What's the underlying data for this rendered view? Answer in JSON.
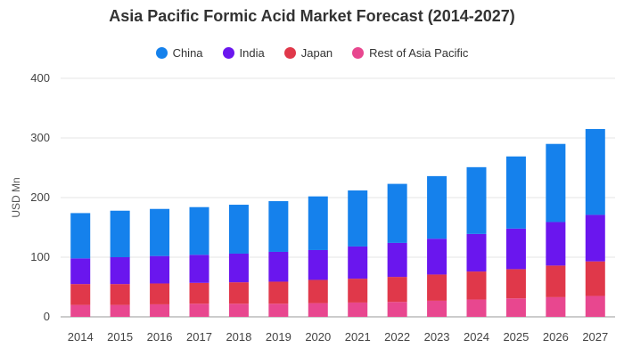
{
  "chart_data": {
    "type": "bar",
    "stacked": true,
    "title": "Asia Pacific Formic Acid Market Forecast (2014-2027)",
    "xlabel": "",
    "ylabel": "USD Mn",
    "ylim": [
      0,
      400
    ],
    "yticks": [
      0,
      100,
      200,
      300,
      400
    ],
    "grid": true,
    "legend_position": "top",
    "categories": [
      "2014",
      "2015",
      "2016",
      "2017",
      "2018",
      "2019",
      "2020",
      "2021",
      "2022",
      "2023",
      "2024",
      "2025",
      "2026",
      "2027"
    ],
    "series": [
      {
        "name": "Rest of Asia Pacific",
        "color": "#e8478f",
        "values": [
          20,
          20,
          21,
          22,
          22,
          22,
          23,
          24,
          25,
          27,
          29,
          31,
          33,
          35
        ]
      },
      {
        "name": "Japan",
        "color": "#e0384a",
        "values": [
          35,
          35,
          35,
          35,
          36,
          37,
          39,
          40,
          42,
          44,
          47,
          49,
          53,
          58
        ]
      },
      {
        "name": "India",
        "color": "#6a16ee",
        "values": [
          43,
          45,
          46,
          47,
          48,
          50,
          50,
          54,
          57,
          60,
          63,
          68,
          73,
          78
        ]
      },
      {
        "name": "China",
        "color": "#1581ec",
        "values": [
          76,
          78,
          79,
          80,
          82,
          85,
          90,
          94,
          99,
          105,
          112,
          121,
          131,
          144
        ]
      }
    ]
  }
}
